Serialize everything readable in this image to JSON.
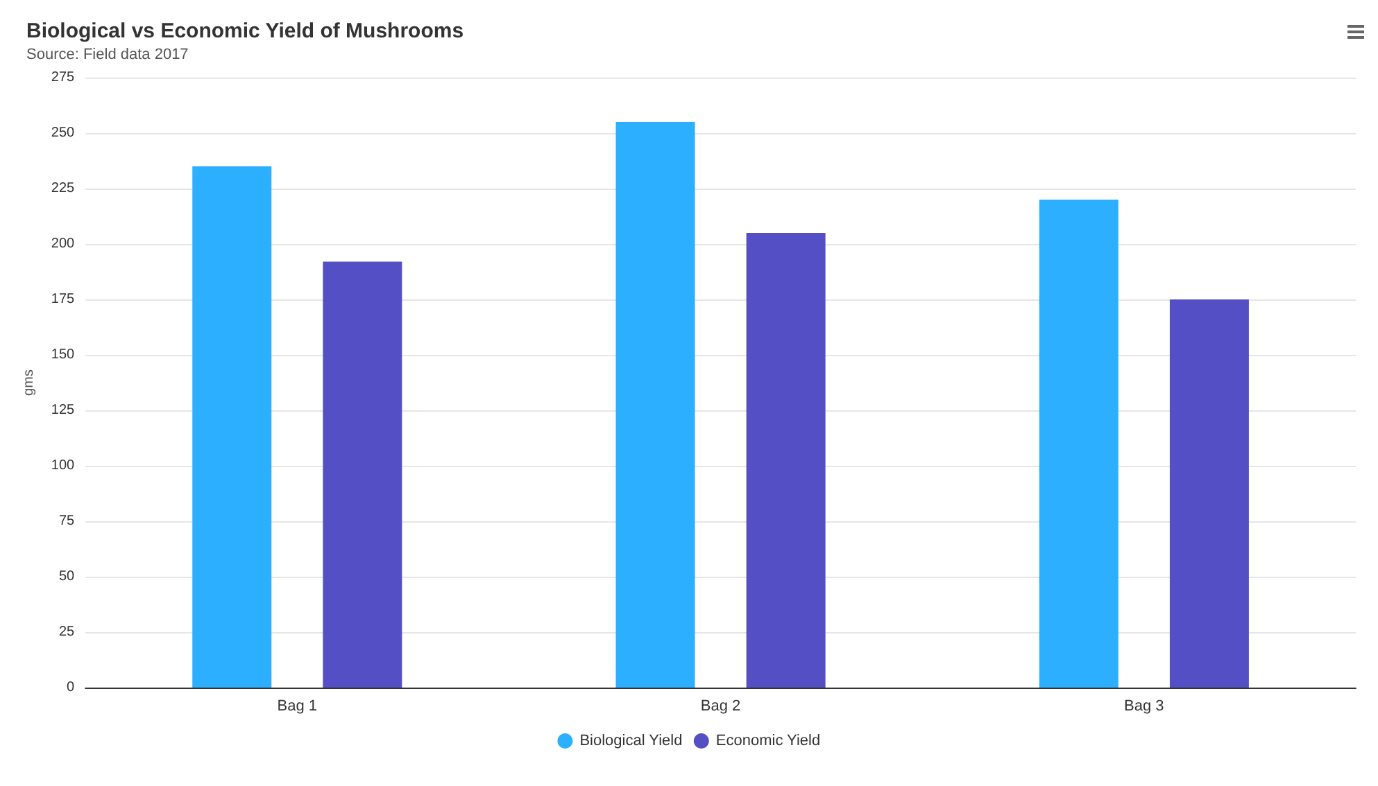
{
  "chart_data": {
    "type": "bar",
    "title": "Biological vs Economic Yield of Mushrooms",
    "subtitle": "Source: Field data 2017",
    "ylabel": "gms",
    "categories": [
      "Bag 1",
      "Bag 2",
      "Bag 3"
    ],
    "series": [
      {
        "name": "Biological Yield",
        "color": "#2caffe",
        "values": [
          235,
          255,
          220
        ]
      },
      {
        "name": "Economic Yield",
        "color": "#544fc5",
        "values": [
          192,
          205,
          175
        ]
      }
    ],
    "ylim": [
      0,
      275
    ],
    "yticks": [
      0,
      25,
      50,
      75,
      100,
      125,
      150,
      175,
      200,
      225,
      250,
      275
    ],
    "grid": "y",
    "legend": "bottom"
  }
}
